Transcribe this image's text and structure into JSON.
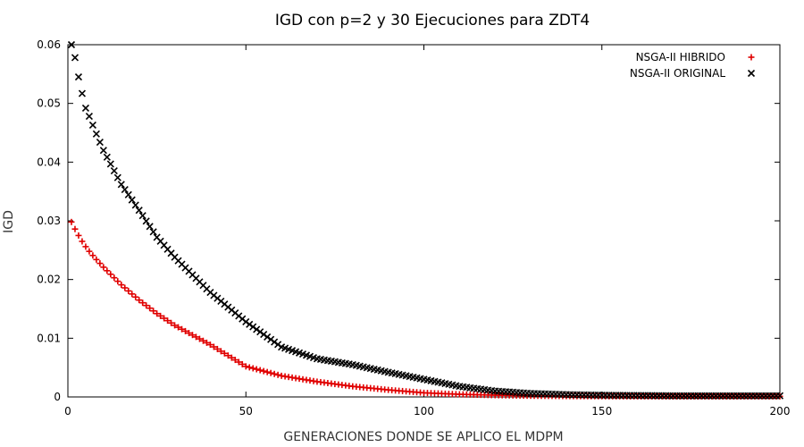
{
  "chart_data": {
    "type": "scatter",
    "title": "IGD con p=2 y 30 Ejecuciones para ZDT4",
    "xlabel": "GENERACIONES DONDE SE APLICO EL MDPM",
    "ylabel": "IGD",
    "xlim": [
      0,
      200
    ],
    "ylim": [
      0,
      0.06
    ],
    "xticks": [
      "0",
      "50",
      "100",
      "150",
      "200"
    ],
    "yticks": [
      "0",
      "0.01",
      "0.02",
      "0.03",
      "0.04",
      "0.05",
      "0.06"
    ],
    "grid": false,
    "legend_position": "top-right",
    "series": [
      {
        "name": "NSGA-II HIBRIDO",
        "marker": "+",
        "color": "#e00000",
        "x": [
          1,
          2,
          3,
          4,
          5,
          6,
          8,
          10,
          15,
          20,
          25,
          30,
          40,
          50,
          60,
          70,
          80,
          90,
          100,
          110,
          120,
          130,
          140,
          150,
          160,
          170,
          180,
          190,
          200
        ],
        "y": [
          0.0298,
          0.0286,
          0.0275,
          0.0265,
          0.0256,
          0.0248,
          0.0234,
          0.0221,
          0.0191,
          0.0165,
          0.0142,
          0.0122,
          0.0089,
          0.0052,
          0.0036,
          0.0026,
          0.0018,
          0.0012,
          0.0007,
          0.00045,
          0.0003,
          0.0002,
          0.00015,
          0.00012,
          0.0001,
          0.0001,
          0.0001,
          0.0001,
          0.0001
        ]
      },
      {
        "name": "NSGA-II ORIGINAL",
        "marker": "x",
        "color": "#000000",
        "x": [
          1,
          2,
          3,
          4,
          5,
          6,
          8,
          10,
          15,
          20,
          25,
          30,
          40,
          50,
          60,
          70,
          80,
          90,
          100,
          110,
          120,
          130,
          140,
          150,
          160,
          170,
          180,
          190,
          200
        ],
        "y": [
          0.06,
          0.0578,
          0.0545,
          0.0517,
          0.0492,
          0.0478,
          0.0448,
          0.042,
          0.0362,
          0.0318,
          0.0272,
          0.0238,
          0.0178,
          0.0128,
          0.0085,
          0.0065,
          0.0055,
          0.0042,
          0.003,
          0.0018,
          0.001,
          0.0006,
          0.0004,
          0.0003,
          0.00025,
          0.0002,
          0.0002,
          0.0002,
          0.0002
        ]
      }
    ]
  }
}
